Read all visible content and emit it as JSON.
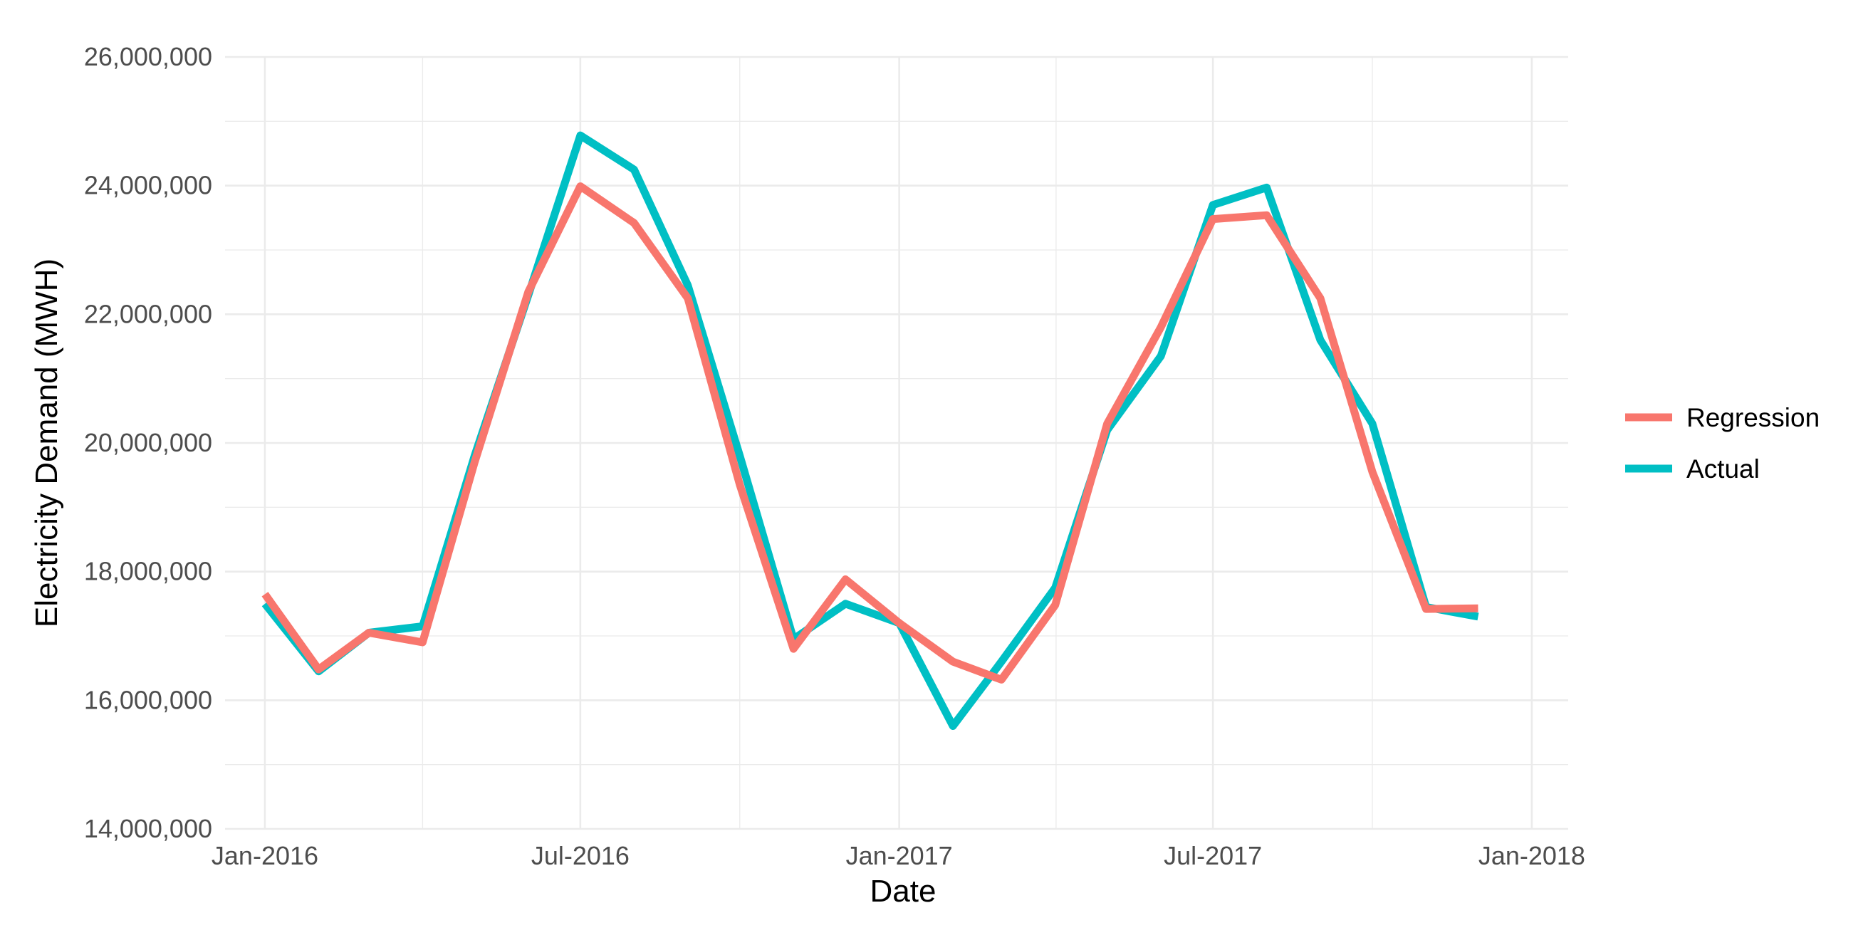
{
  "chart_data": {
    "type": "line",
    "title": "",
    "xlabel": "Date",
    "ylabel": "Electricity Demand (MWH)",
    "x_ticks": [
      "Jan-2016",
      "Jul-2016",
      "Jan-2017",
      "Jul-2017",
      "Jan-2018"
    ],
    "x_tick_dates": [
      "2016-01-01",
      "2016-07-01",
      "2017-01-01",
      "2017-07-01",
      "2018-01-01"
    ],
    "xlim": [
      "2015-12-09",
      "2018-01-22"
    ],
    "y_ticks": [
      14000000,
      16000000,
      18000000,
      20000000,
      22000000,
      24000000,
      26000000
    ],
    "y_tick_labels": [
      "14,000,000",
      "16,000,000",
      "18,000,000",
      "20,000,000",
      "22,000,000",
      "24,000,000",
      "26,000,000"
    ],
    "ylim": [
      14000000,
      26000000
    ],
    "grid": true,
    "legend_position": "right",
    "x": [
      "2016-01-01",
      "2016-02-01",
      "2016-03-01",
      "2016-04-01",
      "2016-05-01",
      "2016-06-01",
      "2016-07-01",
      "2016-08-01",
      "2016-09-01",
      "2016-10-01",
      "2016-11-01",
      "2016-12-01",
      "2017-01-01",
      "2017-02-01",
      "2017-03-01",
      "2017-04-01",
      "2017-05-01",
      "2017-06-01",
      "2017-07-01",
      "2017-08-01",
      "2017-09-01",
      "2017-10-01",
      "2017-11-01",
      "2017-12-01"
    ],
    "series": [
      {
        "name": "Actual",
        "color": "#00BFC4",
        "values": [
          17500000,
          16450000,
          17050000,
          17150000,
          19800000,
          22300000,
          24780000,
          24250000,
          22450000,
          19800000,
          16950000,
          17500000,
          17200000,
          15600000,
          16600000,
          17750000,
          20200000,
          21350000,
          23700000,
          23970000,
          21600000,
          20300000,
          17450000,
          17300000
        ]
      },
      {
        "name": "Regression",
        "color": "#F8766D",
        "values": [
          17650000,
          16480000,
          17050000,
          16900000,
          19700000,
          22350000,
          23990000,
          23420000,
          22250000,
          19350000,
          16800000,
          17880000,
          17200000,
          16600000,
          16320000,
          17480000,
          20300000,
          21800000,
          23480000,
          23540000,
          22250000,
          19550000,
          17420000,
          17430000
        ]
      }
    ],
    "legend_order": [
      "Regression",
      "Actual"
    ]
  }
}
